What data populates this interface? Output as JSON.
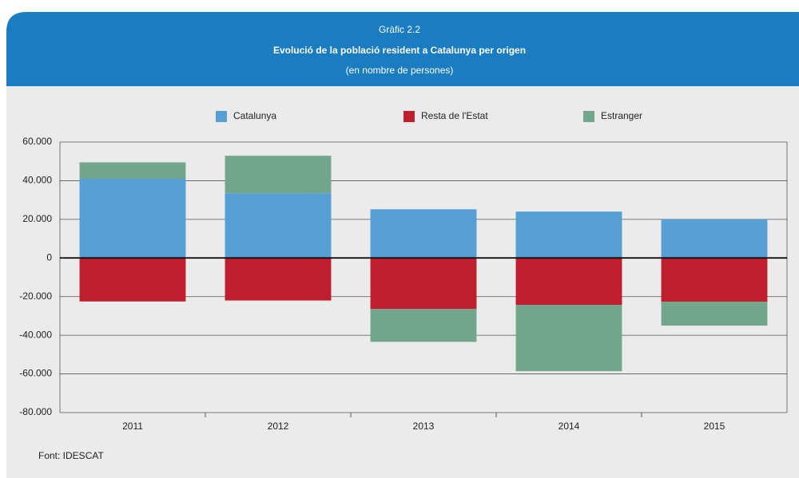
{
  "chart_data": {
    "type": "stacked_bar",
    "heading": "Gràfic 2.2",
    "title": "Evolució de la població resident a Catalunya per origen",
    "subtitle": "(en nombre de persones)",
    "source": "Font: IDESCAT",
    "categories": [
      "2011",
      "2012",
      "2013",
      "2014",
      "2015"
    ],
    "series": [
      {
        "name": "Catalunya",
        "color": "#559fd4",
        "values": [
          41000,
          33500,
          25200,
          24000,
          20000
        ]
      },
      {
        "name": "Resta de l'Estat",
        "color": "#be1e2d",
        "values": [
          -22500,
          -22000,
          -26400,
          -24300,
          -22700
        ]
      },
      {
        "name": "Estranger",
        "color": "#72a68e",
        "values": [
          8500,
          19400,
          -17000,
          -34300,
          -12300
        ]
      }
    ],
    "ylim": [
      -80000,
      60000
    ],
    "yticks": [
      {
        "value": -80000,
        "label": "-80.000"
      },
      {
        "value": -60000,
        "label": "-60.000"
      },
      {
        "value": -40000,
        "label": "-40.000"
      },
      {
        "value": -20000,
        "label": "-20.000"
      },
      0,
      {
        "value": 20000,
        "label": "20.000"
      },
      {
        "value": 40000,
        "label": "40.000"
      },
      {
        "value": 60000,
        "label": "60.000"
      }
    ],
    "grid": true,
    "legend": "top"
  }
}
